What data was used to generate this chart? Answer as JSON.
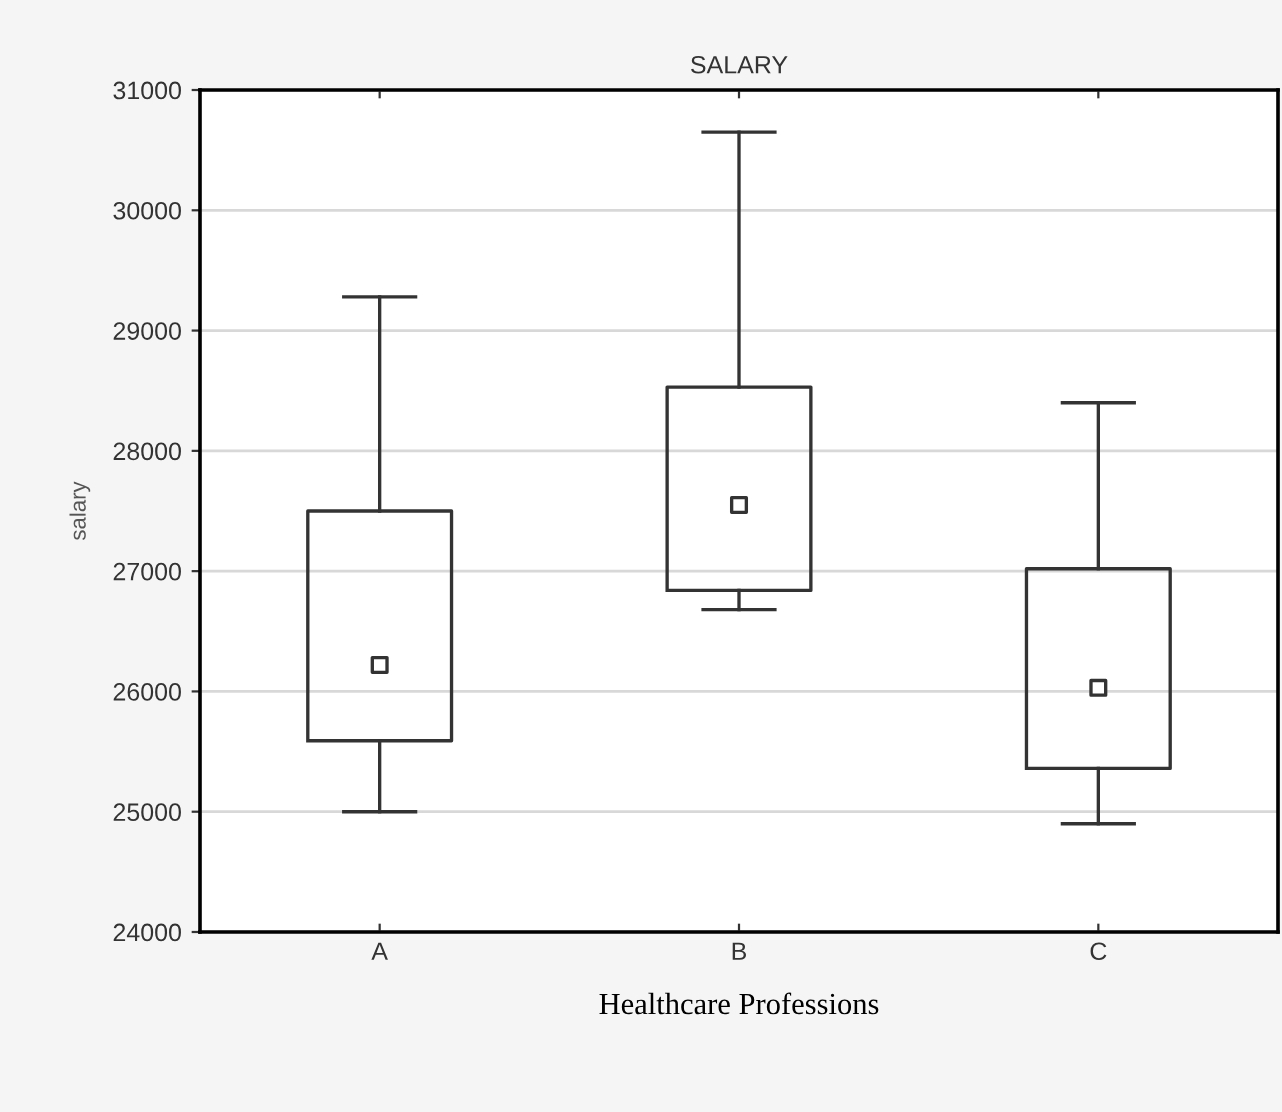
{
  "chart_data": {
    "type": "box",
    "title": "SALARY",
    "xlabel": "Healthcare Professions",
    "ylabel": "salary",
    "categories": [
      "A",
      "B",
      "C"
    ],
    "boxes": [
      {
        "low": 25000,
        "q1": 25590,
        "median": 26220,
        "q3": 27500,
        "high": 29280
      },
      {
        "low": 26680,
        "q1": 26840,
        "median": 27550,
        "q3": 28530,
        "high": 30650
      },
      {
        "low": 24900,
        "q1": 25360,
        "median": 26030,
        "q3": 27020,
        "high": 28400
      }
    ],
    "ylim": [
      24000,
      31000
    ],
    "yticks": [
      24000,
      25000,
      26000,
      27000,
      28000,
      29000,
      30000,
      31000
    ],
    "grid": "y",
    "marker": "square"
  }
}
